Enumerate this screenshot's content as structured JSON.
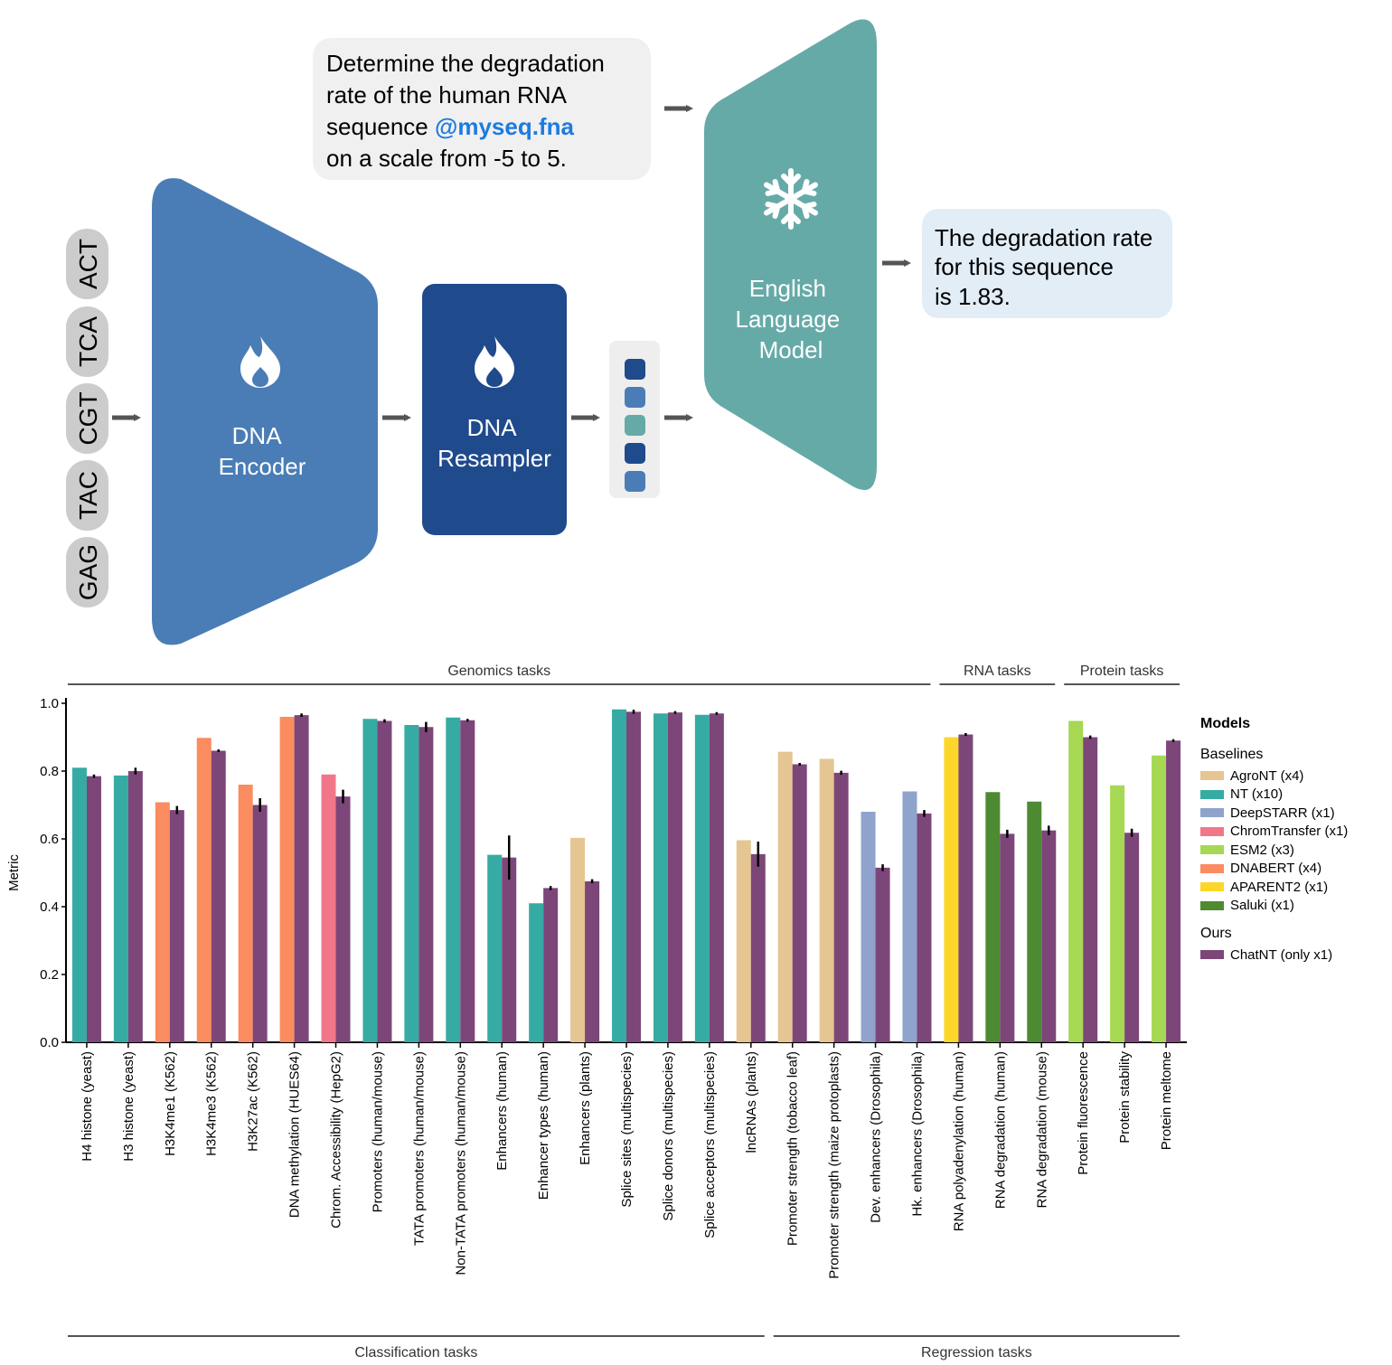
{
  "diagram": {
    "prompt": {
      "line1": "Determine the degradation",
      "line2": "rate of the human RNA",
      "line3_prefix": "sequence ",
      "line3_highlight": "@myseq.fna",
      "line4": "on a scale from -5 to 5."
    },
    "tokens": [
      "ACT",
      "TCA",
      "CGT",
      "TAC",
      "GAG"
    ],
    "encoder": {
      "line1": "DNA",
      "line2": "Encoder"
    },
    "resampler": {
      "line1": "DNA",
      "line2": "Resampler"
    },
    "llm": {
      "line1": "English",
      "line2": "Language",
      "line3": "Model"
    },
    "answer": {
      "line1": "The degradation rate",
      "line2": "for this sequence",
      "line3": "is 1.83."
    },
    "colors": {
      "encoder": "#4a7db5",
      "resampler": "#1f4a8c",
      "llm": "#66aaa8",
      "token_bg": "#cccccc",
      "prompt_bg": "#f0f0f0",
      "answer_bg": "#e2edf6",
      "highlight": "#1d7be0",
      "arrow": "#555555"
    },
    "embedding_colors": [
      "#1f4a8c",
      "#4a7db5",
      "#66aaa8",
      "#1f4a8c",
      "#4a7db5"
    ]
  },
  "chart_data": {
    "type": "bar",
    "ylabel": "Metric",
    "ylim": [
      0,
      1.0
    ],
    "yticks": [
      "0.0",
      "0.2",
      "0.4",
      "0.6",
      "0.8",
      "1.0"
    ],
    "top_groups": [
      {
        "label": "Genomics tasks",
        "from": 0,
        "to": 21
      },
      {
        "label": "RNA tasks",
        "from": 21,
        "to": 24
      },
      {
        "label": "Protein tasks",
        "from": 24,
        "to": 27
      }
    ],
    "bottom_groups": [
      {
        "label": "Classification tasks",
        "from": 0,
        "to": 17
      },
      {
        "label": "Regression tasks",
        "from": 17,
        "to": 27
      }
    ],
    "categories": [
      "H4 histone (yeast)",
      "H3 histone (yeast)",
      "H3K4me1 (K562)",
      "H3K4me3 (K562)",
      "H3K27ac (K562)",
      "DNA methylation (HUES64)",
      "Chrom. Accessibility (HepG2)",
      "Promoters (human/mouse)",
      "TATA promoters (human/mouse)",
      "Non-TATA promoters (human/mouse)",
      "Enhancers (human)",
      "Enhancer types (human)",
      "Enhancers (plants)",
      "Splice sites (multispecies)",
      "Splice donors (multispecies)",
      "Splice acceptors (multispecies)",
      "lncRNAs (plants)",
      "Promoter strength (tobacco leaf)",
      "Promoter strength (maize protoplasts)",
      "Dev. enhancers (Drosophila)",
      "Hk. enhancers (Drosophila)",
      "RNA polyadenylation (human)",
      "RNA degradation (human)",
      "RNA degradation (mouse)",
      "Protein fluorescence",
      "Protein stability",
      "Protein meltome"
    ],
    "baseline_model": [
      "NT (x10)",
      "NT (x10)",
      "DNABERT (x4)",
      "DNABERT (x4)",
      "DNABERT (x4)",
      "DNABERT (x4)",
      "ChromTransfer (x1)",
      "NT (x10)",
      "NT (x10)",
      "NT (x10)",
      "NT (x10)",
      "NT (x10)",
      "AgroNT (x4)",
      "NT (x10)",
      "NT (x10)",
      "NT (x10)",
      "AgroNT (x4)",
      "AgroNT (x4)",
      "AgroNT (x4)",
      "DeepSTARR (x1)",
      "DeepSTARR (x1)",
      "APARENT2 (x1)",
      "Saluki (x1)",
      "Saluki (x1)",
      "ESM2 (x3)",
      "ESM2 (x3)",
      "ESM2 (x3)"
    ],
    "series": [
      {
        "name": "Baselines",
        "values": [
          0.81,
          0.787,
          0.708,
          0.898,
          0.76,
          0.96,
          0.79,
          0.954,
          0.936,
          0.958,
          0.553,
          0.41,
          0.603,
          0.982,
          0.97,
          0.966,
          0.596,
          0.857,
          0.836,
          0.68,
          0.74,
          0.9,
          0.738,
          0.71,
          0.948,
          0.758,
          0.846
        ]
      },
      {
        "name": "ChatNT (only x1)",
        "values": [
          0.785,
          0.8,
          0.685,
          0.86,
          0.7,
          0.965,
          0.725,
          0.948,
          0.93,
          0.95,
          0.545,
          0.455,
          0.475,
          0.975,
          0.973,
          0.97,
          0.555,
          0.82,
          0.795,
          0.515,
          0.675,
          0.908,
          0.615,
          0.625,
          0.9,
          0.618,
          0.89
        ]
      }
    ],
    "errors": [
      0.005,
      0.01,
      0.012,
      0.0,
      0.02,
      0.005,
      0.02,
      0.005,
      0.015,
      0.004,
      0.065,
      0.006,
      0.006,
      0.006,
      0.004,
      0.003,
      0.037,
      0.0,
      0.006,
      0.01,
      0.01,
      0.003,
      0.012,
      0.014,
      0.005,
      0.012,
      0.003
    ],
    "colors": {
      "AgroNT (x4)": "#e5c591",
      "NT (x10)": "#36aba3",
      "DeepSTARR (x1)": "#8fa3cd",
      "ChromTransfer (x1)": "#f2768a",
      "ESM2 (x3)": "#a6d854",
      "DNABERT (x4)": "#fb8c5f",
      "APARENT2 (x1)": "#fcd72a",
      "Saluki (x1)": "#4e8a32",
      "ChatNT (only x1)": "#7d4679"
    },
    "legend": {
      "title": "Models",
      "baselines_label": "Baselines",
      "baselines": [
        "AgroNT (x4)",
        "NT (x10)",
        "DeepSTARR (x1)",
        "ChromTransfer (x1)",
        "ESM2 (x3)",
        "DNABERT (x4)",
        "APARENT2 (x1)",
        "Saluki (x1)"
      ],
      "ours_label": "Ours",
      "ours": [
        "ChatNT (only x1)"
      ],
      "placement": "right"
    }
  }
}
